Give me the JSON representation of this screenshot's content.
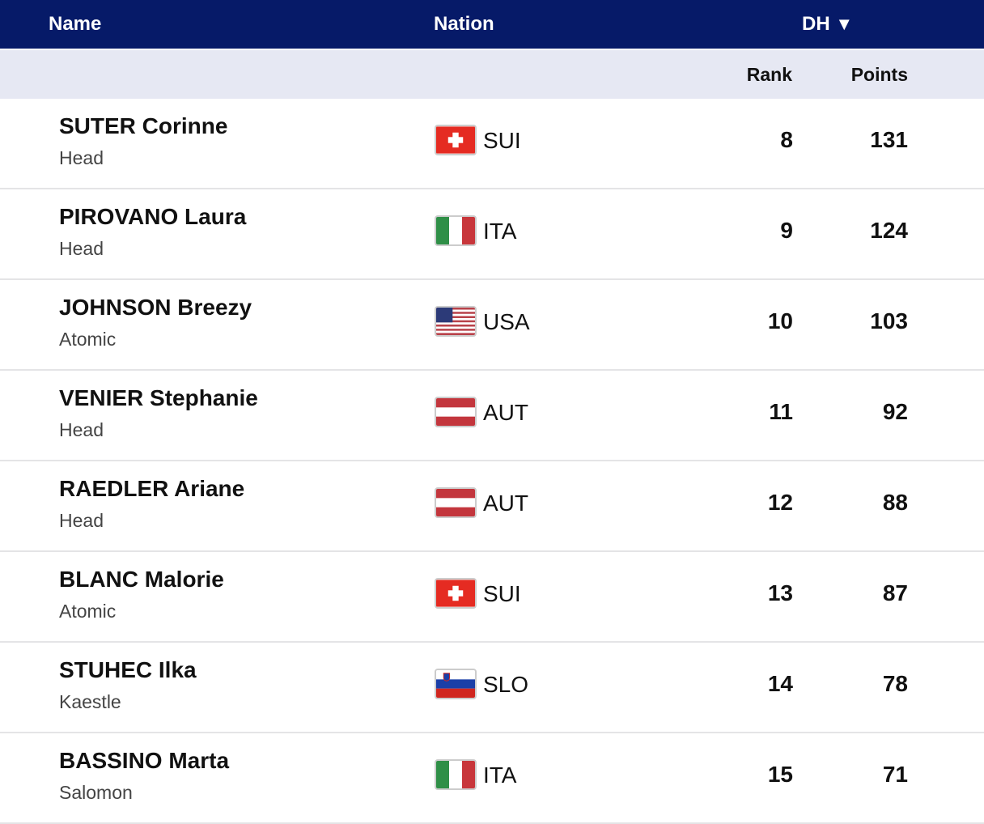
{
  "header": {
    "name": "Name",
    "nation": "Nation",
    "discipline": "DH",
    "sort_icon": "triangle-down-icon"
  },
  "subheader": {
    "rank": "Rank",
    "points": "Points"
  },
  "rows": [
    {
      "name": "SUTER Corinne",
      "brand": "Head",
      "nation": "SUI",
      "rank": "8",
      "points": "131"
    },
    {
      "name": "PIROVANO Laura",
      "brand": "Head",
      "nation": "ITA",
      "rank": "9",
      "points": "124"
    },
    {
      "name": "JOHNSON Breezy",
      "brand": "Atomic",
      "nation": "USA",
      "rank": "10",
      "points": "103"
    },
    {
      "name": "VENIER Stephanie",
      "brand": "Head",
      "nation": "AUT",
      "rank": "11",
      "points": "92"
    },
    {
      "name": "RAEDLER Ariane",
      "brand": "Head",
      "nation": "AUT",
      "rank": "12",
      "points": "88"
    },
    {
      "name": "BLANC Malorie",
      "brand": "Atomic",
      "nation": "SUI",
      "rank": "13",
      "points": "87"
    },
    {
      "name": "STUHEC Ilka",
      "brand": "Kaestle",
      "nation": "SLO",
      "rank": "14",
      "points": "78"
    },
    {
      "name": "BASSINO Marta",
      "brand": "Salomon",
      "nation": "ITA",
      "rank": "15",
      "points": "71"
    }
  ]
}
